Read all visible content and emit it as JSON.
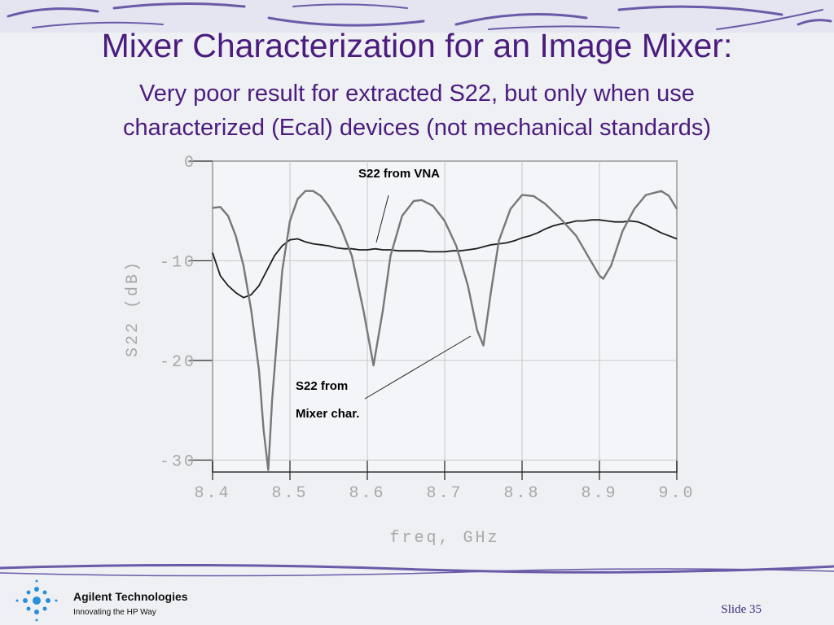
{
  "title": "Mixer Characterization for an Image Mixer:",
  "subtitle": [
    "Very poor result for extracted S22, but only when use",
    "characterized (Ecal) devices (not mechanical standards)"
  ],
  "chart_data": {
    "type": "line",
    "xlabel": "freq, GHz",
    "ylabel": "S22 (dB)",
    "xlim": [
      8.4,
      9.0
    ],
    "ylim": [
      -31.2,
      0
    ],
    "xticks": [
      8.4,
      8.5,
      8.6,
      8.7,
      8.8,
      8.9,
      {
        "value": 9,
        "label": "9.0"
      }
    ],
    "yticks": [
      0,
      -10,
      -20,
      -30
    ],
    "grid": true,
    "annotations": [
      "S22 from VNA",
      "S22 from",
      "Mixer char."
    ],
    "series": [
      {
        "name": "S22 from VNA",
        "color": "#1e1e1e",
        "x": [
          8.4,
          8.41,
          8.42,
          8.43,
          8.44,
          8.45,
          8.46,
          8.47,
          8.48,
          8.49,
          8.5,
          8.51,
          8.52,
          8.53,
          8.54,
          8.55,
          8.56,
          8.57,
          8.58,
          8.59,
          8.6,
          8.61,
          8.62,
          8.63,
          8.64,
          8.65,
          8.66,
          8.67,
          8.68,
          8.69,
          8.7,
          8.71,
          8.72,
          8.73,
          8.74,
          8.75,
          8.76,
          8.77,
          8.78,
          8.79,
          8.8,
          8.81,
          8.82,
          8.83,
          8.84,
          8.85,
          8.86,
          8.87,
          8.88,
          8.89,
          8.9,
          8.91,
          8.92,
          8.93,
          8.94,
          8.95,
          8.96,
          8.97,
          8.98,
          8.99,
          9.0
        ],
        "values": [
          -9.2,
          -11.5,
          -12.5,
          -13.2,
          -13.7,
          -13.4,
          -12.5,
          -11.0,
          -9.5,
          -8.5,
          -7.9,
          -7.8,
          -8.1,
          -8.3,
          -8.4,
          -8.5,
          -8.7,
          -8.8,
          -8.8,
          -8.9,
          -8.9,
          -8.8,
          -8.9,
          -8.9,
          -9.0,
          -9.0,
          -9.0,
          -9.0,
          -9.1,
          -9.1,
          -9.1,
          -9.0,
          -9.0,
          -8.9,
          -8.8,
          -8.6,
          -8.4,
          -8.3,
          -8.2,
          -8.0,
          -7.7,
          -7.5,
          -7.2,
          -6.8,
          -6.5,
          -6.3,
          -6.2,
          -6.0,
          -6.0,
          -5.9,
          -5.9,
          -6.0,
          -6.1,
          -6.1,
          -6.0,
          -6.1,
          -6.4,
          -6.8,
          -7.2,
          -7.5,
          -7.8
        ]
      },
      {
        "name": "S22 from Mixer char.",
        "color": "#777777",
        "x": [
          8.4,
          8.41,
          8.42,
          8.43,
          8.44,
          8.45,
          8.46,
          8.466,
          8.472,
          8.477,
          8.482,
          8.49,
          8.5,
          8.51,
          8.52,
          8.53,
          8.54,
          8.55,
          8.565,
          8.58,
          8.595,
          8.608,
          8.62,
          8.63,
          8.645,
          8.66,
          8.67,
          8.685,
          8.7,
          8.715,
          8.73,
          8.742,
          8.75,
          8.76,
          8.77,
          8.785,
          8.8,
          8.815,
          8.83,
          8.85,
          8.87,
          8.885,
          8.9,
          8.905,
          8.915,
          8.93,
          8.945,
          8.96,
          8.98,
          8.99,
          9.0
        ],
        "values": [
          -4.7,
          -4.6,
          -5.5,
          -7.5,
          -10.5,
          -15,
          -21,
          -27,
          -31,
          -24,
          -19,
          -11,
          -6,
          -3.8,
          -3.0,
          -3.0,
          -3.5,
          -4.5,
          -6.5,
          -9.5,
          -15,
          -20.5,
          -15,
          -9.5,
          -5.5,
          -4.0,
          -3.9,
          -4.5,
          -6.0,
          -8.5,
          -12.5,
          -17,
          -18.5,
          -13,
          -8,
          -4.8,
          -3.4,
          -3.5,
          -4.3,
          -5.8,
          -7.5,
          -9.5,
          -11.5,
          -11.8,
          -10.5,
          -7.0,
          -4.8,
          -3.4,
          -3.0,
          -3.5,
          -4.8
        ]
      }
    ]
  },
  "footer": {
    "company": "Agilent Technologies",
    "tagline": "Innovating the HP Way",
    "slide": "Slide 35"
  }
}
